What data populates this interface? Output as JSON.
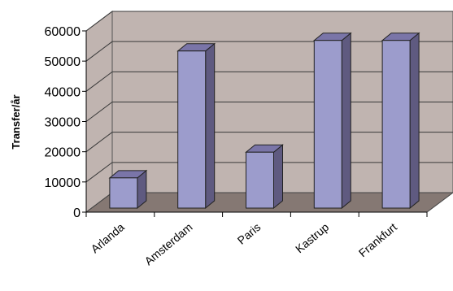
{
  "chart_data": {
    "type": "bar",
    "title": "",
    "xlabel": "",
    "ylabel": "Transfer/år",
    "categories": [
      "Arlanda",
      "Amsterdam",
      "Paris",
      "Kastrup",
      "Frankfurt"
    ],
    "values": [
      10000,
      52000,
      18500,
      55500,
      55500
    ],
    "ylim": [
      0,
      60000
    ],
    "yticks": [
      "0",
      "10000",
      "20000",
      "30000",
      "40000",
      "50000",
      "60000"
    ],
    "grid": true,
    "legend": "none",
    "style": "3d-bar",
    "colors": {
      "bar_front": "#9c9ccc",
      "bar_side": "#5f5a80",
      "bar_top": "#7a75a8",
      "wall": "#c0b4b0",
      "floor": "#857873",
      "gridline": "#3a3a3a"
    }
  }
}
